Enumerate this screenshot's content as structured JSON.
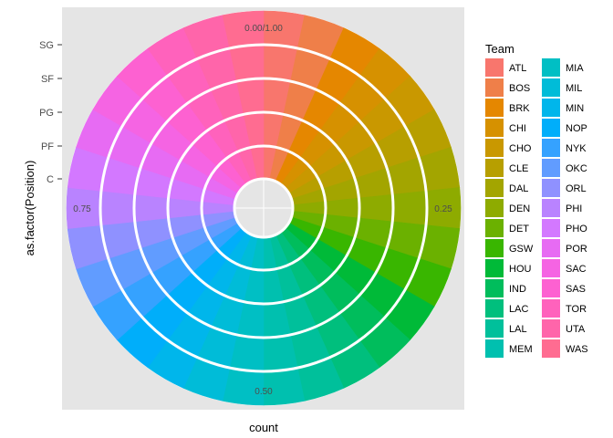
{
  "chart_data": {
    "type": "pie",
    "subtype": "stacked polar bar (coord_polar)",
    "xlabel": "count",
    "ylabel": "as.factor(Position)",
    "positions": [
      "C",
      "PF",
      "PG",
      "SF",
      "SG"
    ],
    "theta_ticks": [
      "0.00/1.00",
      "0.25",
      "0.50",
      "0.75"
    ],
    "legend_title": "Team",
    "legend_placement": "right",
    "grid": true,
    "panel_background": "#e5e5e5",
    "categories": [
      "ATL",
      "BOS",
      "BRK",
      "CHI",
      "CHO",
      "CLE",
      "DAL",
      "DEN",
      "DET",
      "GSW",
      "HOU",
      "IND",
      "LAC",
      "LAL",
      "MEM",
      "MIA",
      "MIL",
      "MIN",
      "NOP",
      "NYK",
      "OKC",
      "ORL",
      "PHI",
      "PHO",
      "POR",
      "SAC",
      "SAS",
      "TOR",
      "UTA",
      "WAS"
    ],
    "colors": [
      "#F8766D",
      "#EF7F49",
      "#E58700",
      "#D69100",
      "#C99800",
      "#B79F00",
      "#A3A500",
      "#8EAB00",
      "#6BB100",
      "#39B600",
      "#00BA38",
      "#00BD5C",
      "#00BF7D",
      "#00C09B",
      "#00C0AF",
      "#00BFC4",
      "#00BCD8",
      "#00B6EB",
      "#00AEFA",
      "#35A2FF",
      "#619CFF",
      "#8F91FF",
      "#B983FF",
      "#D378FF",
      "#E76BF3",
      "#F564E3",
      "#FD61D1",
      "#FF62BC",
      "#FF65AA",
      "#FF6C91"
    ],
    "note_values": "each team contributes an equal share (1/30) of each position ring",
    "series": [
      {
        "name": "C",
        "values": [
          1,
          1,
          1,
          1,
          1,
          1,
          1,
          1,
          1,
          1,
          1,
          1,
          1,
          1,
          1,
          1,
          1,
          1,
          1,
          1,
          1,
          1,
          1,
          1,
          1,
          1,
          1,
          1,
          1,
          1
        ]
      },
      {
        "name": "PF",
        "values": [
          1,
          1,
          1,
          1,
          1,
          1,
          1,
          1,
          1,
          1,
          1,
          1,
          1,
          1,
          1,
          1,
          1,
          1,
          1,
          1,
          1,
          1,
          1,
          1,
          1,
          1,
          1,
          1,
          1,
          1
        ]
      },
      {
        "name": "PG",
        "values": [
          1,
          1,
          1,
          1,
          1,
          1,
          1,
          1,
          1,
          1,
          1,
          1,
          1,
          1,
          1,
          1,
          1,
          1,
          1,
          1,
          1,
          1,
          1,
          1,
          1,
          1,
          1,
          1,
          1,
          1
        ]
      },
      {
        "name": "SF",
        "values": [
          1,
          1,
          1,
          1,
          1,
          1,
          1,
          1,
          1,
          1,
          1,
          1,
          1,
          1,
          1,
          1,
          1,
          1,
          1,
          1,
          1,
          1,
          1,
          1,
          1,
          1,
          1,
          1,
          1,
          1
        ]
      },
      {
        "name": "SG",
        "values": [
          1,
          1,
          1,
          1,
          1,
          1,
          1,
          1,
          1,
          1,
          1,
          1,
          1,
          1,
          1,
          1,
          1,
          1,
          1,
          1,
          1,
          1,
          1,
          1,
          1,
          1,
          1,
          1,
          1,
          1
        ]
      }
    ]
  }
}
